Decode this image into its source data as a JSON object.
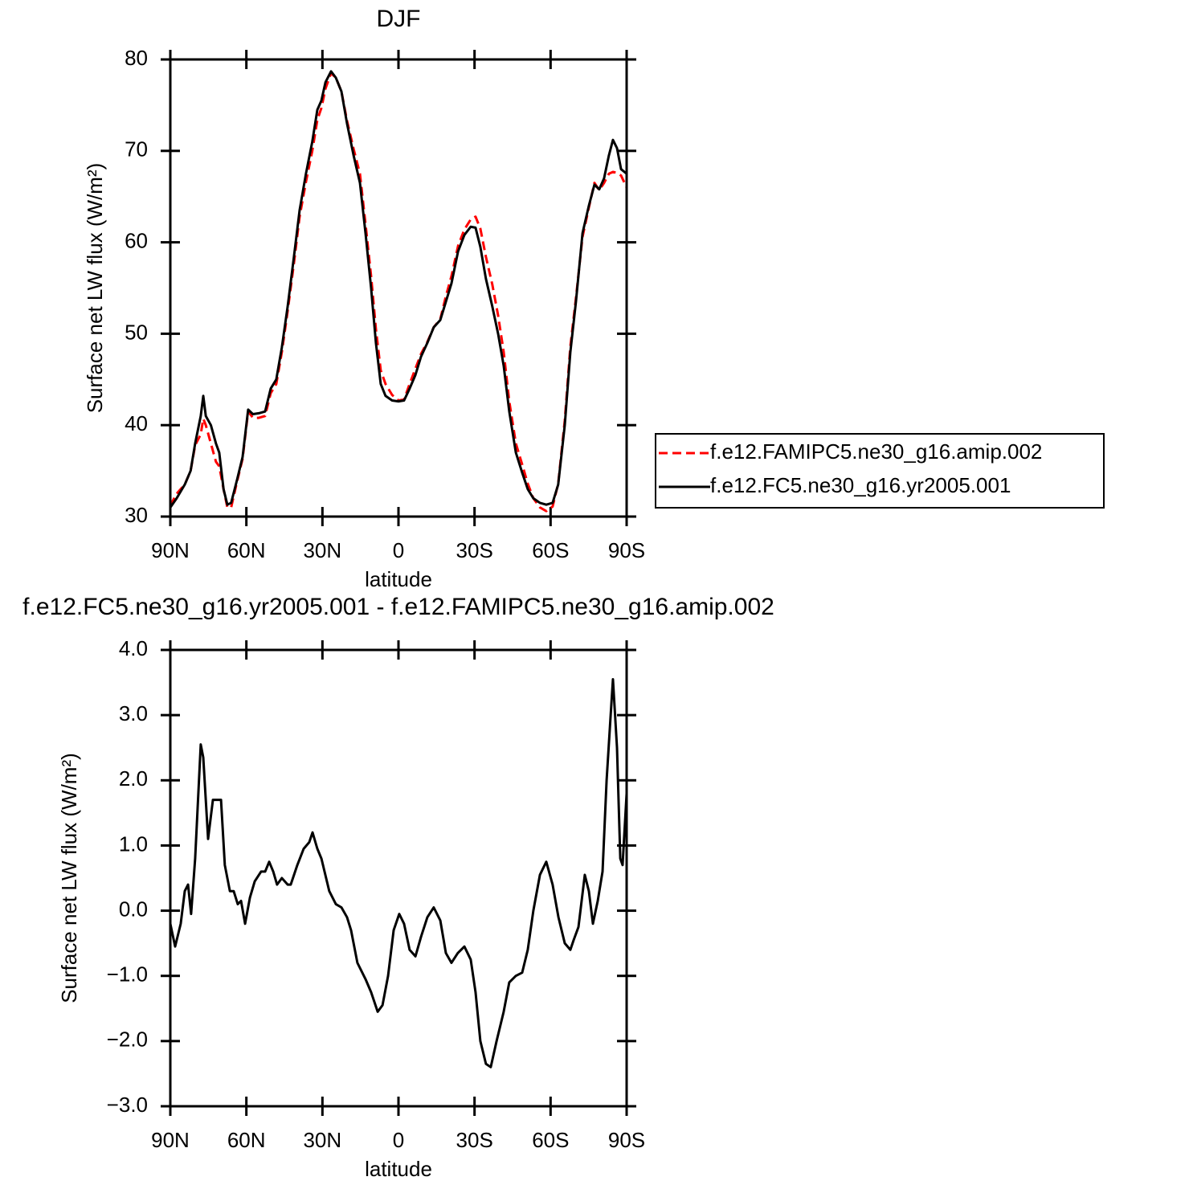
{
  "chart_data": [
    {
      "type": "line",
      "title": "DJF",
      "xlabel": "latitude",
      "ylabel": "Surface net LW flux (W/m²)",
      "xlim": [
        90,
        -90
      ],
      "xticks": [
        {
          "value": 90,
          "label": "90N"
        },
        {
          "value": 60,
          "label": "60N"
        },
        {
          "value": 30,
          "label": "30N"
        },
        0,
        {
          "value": -30,
          "label": "30S"
        },
        {
          "value": -60,
          "label": "60S"
        },
        {
          "value": -90,
          "label": "90S"
        }
      ],
      "ylim": [
        30,
        80
      ],
      "yticks": [
        30,
        40,
        50,
        60,
        70,
        80
      ],
      "legend": "right",
      "x": [
        90,
        87.5,
        84.3,
        82,
        80.2,
        78,
        77,
        76,
        74,
        72,
        70.7,
        69,
        67.5,
        66,
        63.7,
        61.5,
        59.3,
        57.4,
        55.1,
        52.6,
        50.4,
        48.2,
        46,
        43.7,
        41.2,
        39,
        36.5,
        34,
        32,
        30.4,
        28.8,
        26.6,
        24.7,
        22.5,
        20.3,
        17.7,
        15.2,
        13,
        10.8,
        8.9,
        7,
        5.1,
        2.5,
        0,
        -2.2,
        -4.4,
        -6.7,
        -8.9,
        -11.4,
        -13.9,
        -16.5,
        -18.7,
        -20.9,
        -23.5,
        -26,
        -28.5,
        -30.4,
        -32.3,
        -34.5,
        -37,
        -39.3,
        -41.5,
        -43.7,
        -46.3,
        -48.8,
        -51,
        -53.2,
        -55.8,
        -58.3,
        -60.8,
        -63,
        -65.6,
        -67.8,
        -70,
        -72.6,
        -75.1,
        -77.3,
        -79.2,
        -81.1,
        -83,
        -84.6,
        -86.2,
        -87.8,
        -90
      ],
      "series": [
        {
          "name": "f.e12.FAMIPC5.ne30_g16.amip.002",
          "color": "#ff0000",
          "line_style": "dashed",
          "values": [
            31.2,
            32.5,
            33.5,
            35,
            37.8,
            39,
            40.7,
            40,
            38,
            36,
            35.5,
            33,
            31,
            31,
            33.8,
            36.3,
            41.5,
            40.8,
            40.8,
            41,
            43.5,
            44.5,
            48,
            52.5,
            57.8,
            62.8,
            66.6,
            70,
            73.4,
            74.7,
            76.8,
            78.5,
            78,
            76.5,
            73.3,
            70.2,
            67.5,
            62,
            56.3,
            50.5,
            46,
            44.5,
            43.3,
            42.7,
            42.8,
            44.5,
            46.2,
            47.8,
            49.1,
            50.7,
            51.6,
            54.1,
            56.3,
            59.6,
            61.4,
            62.5,
            62.8,
            61.5,
            58.4,
            55.4,
            52,
            48,
            42.6,
            38,
            35.7,
            33.6,
            32,
            31,
            30.6,
            31.1,
            33.6,
            40.5,
            48.6,
            53.9,
            60.6,
            63.8,
            66.5,
            65.7,
            66.5,
            67.5,
            67.7,
            67.6,
            67.3,
            66
          ]
        },
        {
          "name": "f.e12.FC5.ne30_g16.yr2005.001",
          "color": "#000000",
          "line_style": "solid",
          "values": [
            31,
            32,
            33.5,
            35,
            38,
            41,
            43.2,
            41,
            40,
            38,
            37,
            33,
            31.3,
            31.5,
            34,
            36.5,
            41.7,
            41.2,
            41.3,
            41.5,
            44,
            45,
            48.5,
            53,
            58.5,
            63.5,
            67.5,
            71,
            74.5,
            75.5,
            77.5,
            78.7,
            78,
            76.5,
            73,
            69.5,
            66.5,
            61,
            55,
            49,
            44.5,
            43.2,
            42.7,
            42.6,
            42.7,
            44,
            45.5,
            47.5,
            49,
            50.7,
            51.5,
            53.5,
            55.5,
            59,
            60.8,
            61.7,
            61.6,
            59.5,
            56,
            53,
            50,
            46.5,
            41.5,
            37,
            34.8,
            33,
            32,
            31.5,
            31.3,
            31.5,
            33.5,
            40,
            48,
            53.5,
            61,
            64,
            66.3,
            65.8,
            67,
            69.5,
            71.2,
            70.3,
            68,
            67.5
          ]
        }
      ]
    },
    {
      "type": "line",
      "title": "f.e12.FC5.ne30_g16.yr2005.001 - f.e12.FAMIPC5.ne30_g16.amip.002",
      "xlabel": "latitude",
      "ylabel": "Surface net LW flux (W/m²)",
      "xlim": [
        90,
        -90
      ],
      "xticks": [
        {
          "value": 90,
          "label": "90N"
        },
        {
          "value": 60,
          "label": "60N"
        },
        {
          "value": 30,
          "label": "30N"
        },
        0,
        {
          "value": -30,
          "label": "30S"
        },
        {
          "value": -60,
          "label": "60S"
        },
        {
          "value": -90,
          "label": "90S"
        }
      ],
      "ylim": [
        -3,
        4
      ],
      "yticks": [
        {
          "value": -3,
          "label": "−3.0"
        },
        {
          "value": -2,
          "label": "−2.0"
        },
        {
          "value": -1,
          "label": "−1.0"
        },
        {
          "value": 0,
          "label": "0.0"
        },
        {
          "value": 1,
          "label": "1.0"
        },
        {
          "value": 2,
          "label": "2.0"
        },
        {
          "value": 3,
          "label": "3.0"
        },
        {
          "value": 4,
          "label": "4.0"
        }
      ],
      "x": [
        90,
        88.1,
        85.9,
        84.3,
        83,
        81.8,
        80.2,
        78,
        77,
        75.1,
        73.2,
        71.6,
        70,
        68.5,
        66.5,
        65,
        63.4,
        62.1,
        60.5,
        58.6,
        56.7,
        54.2,
        52.6,
        51,
        49.4,
        47.9,
        46,
        43.7,
        42.5,
        39.9,
        37.4,
        35.2,
        33.9,
        32,
        30.4,
        27.3,
        24.7,
        22.5,
        20.3,
        18.7,
        16.2,
        13,
        10.8,
        8.2,
        6.3,
        4.1,
        1.9,
        -0.3,
        -2.2,
        -4.4,
        -6.7,
        -8.9,
        -11.4,
        -13.9,
        -16.5,
        -18.7,
        -20.9,
        -23.4,
        -26,
        -28.5,
        -30.4,
        -32.3,
        -34.5,
        -36.4,
        -38.7,
        -41.5,
        -43.7,
        -46.3,
        -48.8,
        -51,
        -53.2,
        -55.8,
        -58.3,
        -60.8,
        -63.1,
        -65.6,
        -67.8,
        -69.1,
        -71,
        -73.5,
        -75.1,
        -76.7,
        -78.6,
        -80.5,
        -82.1,
        -83.7,
        -84.6,
        -86.2,
        -87.5,
        -88.4,
        -90
      ],
      "series": [
        {
          "color": "#000000",
          "line_style": "solid",
          "values": [
            -0.2,
            -0.55,
            -0.2,
            0.3,
            0.4,
            -0.05,
            0.8,
            2.55,
            2.35,
            1.1,
            1.7,
            1.7,
            1.7,
            0.7,
            0.3,
            0.3,
            0.1,
            0.15,
            -0.2,
            0.2,
            0.45,
            0.6,
            0.6,
            0.75,
            0.6,
            0.4,
            0.5,
            0.4,
            0.4,
            0.7,
            0.95,
            1.05,
            1.2,
            0.95,
            0.8,
            0.3,
            0.1,
            0.05,
            -0.1,
            -0.3,
            -0.8,
            -1.05,
            -1.25,
            -1.55,
            -1.45,
            -1,
            -0.3,
            -0.05,
            -0.2,
            -0.6,
            -0.7,
            -0.4,
            -0.1,
            0.05,
            -0.15,
            -0.65,
            -0.8,
            -0.65,
            -0.55,
            -0.75,
            -1.25,
            -2,
            -2.35,
            -2.4,
            -2,
            -1.55,
            -1.1,
            -1,
            -0.95,
            -0.6,
            0,
            0.55,
            0.75,
            0.4,
            -0.1,
            -0.5,
            -0.6,
            -0.45,
            -0.25,
            0.55,
            0.3,
            -0.2,
            0.15,
            0.6,
            2,
            3,
            3.55,
            2.5,
            0.8,
            0.7,
            1.8
          ]
        }
      ]
    }
  ]
}
